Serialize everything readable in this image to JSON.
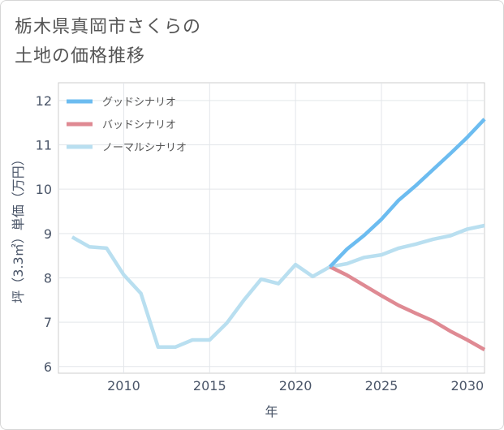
{
  "title_lines": [
    "栃木県真岡市さくらの",
    "土地の価格推移"
  ],
  "chart_data": {
    "type": "line",
    "title": "栃木県真岡市さくらの土地の価格推移",
    "xlabel": "年",
    "ylabel": "坪（3.3㎡）単価（万円）",
    "xlim": [
      2006.2,
      2031
    ],
    "ylim": [
      5.85,
      12.4
    ],
    "x_ticks": [
      2010,
      2015,
      2020,
      2025,
      2030
    ],
    "y_ticks": [
      6,
      7,
      8,
      9,
      10,
      11,
      12
    ],
    "grid": true,
    "legend_position": "top-left",
    "series": [
      {
        "name": "グッドシナリオ",
        "color": "#6cbcf0",
        "x": [
          2022,
          2023,
          2024,
          2025,
          2026,
          2027,
          2028,
          2029,
          2030,
          2031
        ],
        "y": [
          8.25,
          8.65,
          8.96,
          9.32,
          9.75,
          10.08,
          10.44,
          10.8,
          11.17,
          11.58
        ]
      },
      {
        "name": "バッドシナリオ",
        "color": "#df8a93",
        "x": [
          2022,
          2023,
          2024,
          2025,
          2026,
          2027,
          2028,
          2029,
          2030,
          2031
        ],
        "y": [
          8.25,
          8.06,
          7.83,
          7.6,
          7.38,
          7.2,
          7.03,
          6.8,
          6.6,
          6.38
        ]
      },
      {
        "name": "ノーマルシナリオ",
        "color": "#b9dff0",
        "x": [
          2007,
          2008,
          2009,
          2010,
          2011,
          2012,
          2013,
          2014,
          2015,
          2016,
          2017,
          2018,
          2019,
          2020,
          2021,
          2022,
          2023,
          2024,
          2025,
          2026,
          2027,
          2028,
          2029,
          2030,
          2031
        ],
        "y": [
          8.92,
          8.7,
          8.67,
          8.07,
          7.65,
          6.44,
          6.44,
          6.6,
          6.6,
          6.98,
          7.5,
          7.97,
          7.87,
          8.3,
          8.03,
          8.25,
          8.32,
          8.46,
          8.52,
          8.67,
          8.76,
          8.87,
          8.95,
          9.1,
          9.18
        ]
      }
    ]
  }
}
